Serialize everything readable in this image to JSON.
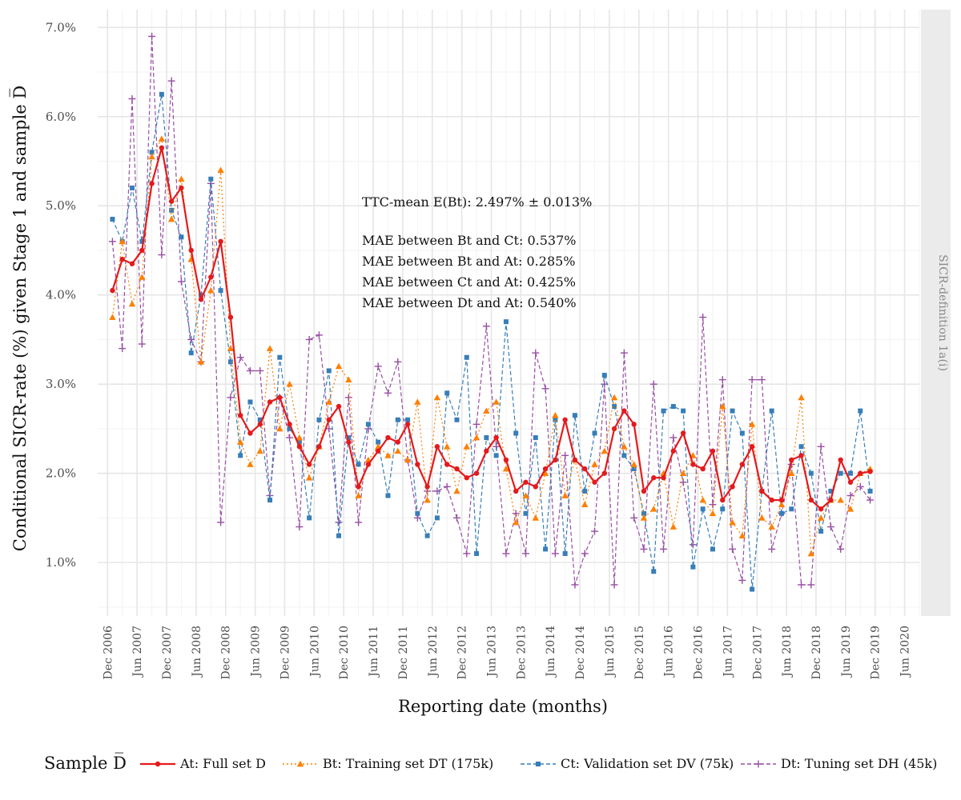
{
  "chart_data": {
    "type": "line",
    "ylabel": "Conditional SICR-rate (%) given Stage 1 and sample D̅",
    "xlabel": "Reporting date (months)",
    "facet_label": "SICR-definition 1a(i)",
    "ylim": [
      0.4,
      7.2
    ],
    "xlim": [
      "2006-10",
      "2020-09"
    ],
    "y_ticks": [
      1.0,
      2.0,
      3.0,
      4.0,
      5.0,
      6.0,
      7.0
    ],
    "y_tick_labels": [
      "1.0%",
      "2.0%",
      "3.0%",
      "4.0%",
      "5.0%",
      "6.0%",
      "7.0%"
    ],
    "x_ticks": [
      "2006-12",
      "2007-06",
      "2007-12",
      "2008-06",
      "2008-12",
      "2009-06",
      "2009-12",
      "2010-06",
      "2010-12",
      "2011-06",
      "2011-12",
      "2012-06",
      "2012-12",
      "2013-06",
      "2013-12",
      "2014-06",
      "2014-12",
      "2015-06",
      "2015-12",
      "2016-06",
      "2016-12",
      "2017-06",
      "2017-12",
      "2018-06",
      "2018-12",
      "2019-06",
      "2019-12",
      "2020-06"
    ],
    "x_tick_labels": [
      "Dec 2006",
      "Jun 2007",
      "Dec 2007",
      "Jun 2008",
      "Dec 2008",
      "Jun 2009",
      "Dec 2009",
      "Jun 2010",
      "Dec 2010",
      "Jun 2011",
      "Dec 2011",
      "Jun 2012",
      "Dec 2012",
      "Jun 2013",
      "Dec 2013",
      "Jun 2014",
      "Dec 2014",
      "Jun 2015",
      "Dec 2015",
      "Jun 2016",
      "Dec 2016",
      "Jun 2017",
      "Dec 2017",
      "Jun 2018",
      "Dec 2018",
      "Jun 2019",
      "Dec 2019",
      "Jun 2020"
    ],
    "grid": true,
    "legend_position": "bottom",
    "legend_title": "Sample D̅",
    "annotations": [
      "TTC-mean E(Bt): 2.497% ± 0.013%",
      "MAE between Bt and Ct: 0.537%",
      "MAE between Bt and At: 0.285%",
      "MAE between Ct and At: 0.425%",
      "MAE between Dt and At: 0.540%"
    ],
    "x": [
      "2007-01",
      "2007-03",
      "2007-05",
      "2007-07",
      "2007-09",
      "2007-11",
      "2008-01",
      "2008-03",
      "2008-05",
      "2008-07",
      "2008-09",
      "2008-11",
      "2009-01",
      "2009-03",
      "2009-05",
      "2009-07",
      "2009-09",
      "2009-11",
      "2010-01",
      "2010-03",
      "2010-05",
      "2010-07",
      "2010-09",
      "2010-11",
      "2011-01",
      "2011-03",
      "2011-05",
      "2011-07",
      "2011-09",
      "2011-11",
      "2012-01",
      "2012-03",
      "2012-05",
      "2012-07",
      "2012-09",
      "2012-11",
      "2013-01",
      "2013-03",
      "2013-05",
      "2013-07",
      "2013-09",
      "2013-11",
      "2014-01",
      "2014-03",
      "2014-05",
      "2014-07",
      "2014-09",
      "2014-11",
      "2015-01",
      "2015-03",
      "2015-05",
      "2015-07",
      "2015-09",
      "2015-11",
      "2016-01",
      "2016-03",
      "2016-05",
      "2016-07",
      "2016-09",
      "2016-11",
      "2017-01",
      "2017-03",
      "2017-05",
      "2017-07",
      "2017-09",
      "2017-11",
      "2018-01",
      "2018-03",
      "2018-05",
      "2018-07",
      "2018-09",
      "2018-11",
      "2019-01",
      "2019-03",
      "2019-05",
      "2019-07",
      "2019-09",
      "2019-11"
    ],
    "series": [
      {
        "name": "At: Full set D",
        "color": "#e41a1c",
        "marker": "circle",
        "dash": "solid",
        "values": [
          4.05,
          4.4,
          4.35,
          4.5,
          5.25,
          5.65,
          5.05,
          5.2,
          4.5,
          3.95,
          4.2,
          4.6,
          3.75,
          2.65,
          2.45,
          2.55,
          2.8,
          2.85,
          2.55,
          2.3,
          2.1,
          2.3,
          2.6,
          2.75,
          2.35,
          1.85,
          2.1,
          2.25,
          2.4,
          2.35,
          2.55,
          2.1,
          1.85,
          2.3,
          2.1,
          2.05,
          1.95,
          2.0,
          2.25,
          2.4,
          2.15,
          1.8,
          1.9,
          1.85,
          2.05,
          2.15,
          2.6,
          2.15,
          2.05,
          1.9,
          2.0,
          2.5,
          2.7,
          2.55,
          1.8,
          1.95,
          1.95,
          2.25,
          2.45,
          2.1,
          2.05,
          2.25,
          1.7,
          1.85,
          2.1,
          2.3,
          1.8,
          1.7,
          1.7,
          2.15,
          2.2,
          1.7,
          1.6,
          1.7,
          2.15,
          1.9,
          2.0,
          2.02
        ]
      },
      {
        "name": "Bt: Training set DT (175k)",
        "color": "#ff7f00",
        "marker": "triangle",
        "dash": "dotted",
        "values": [
          3.75,
          4.6,
          3.9,
          4.2,
          5.55,
          5.75,
          4.85,
          5.3,
          4.4,
          3.25,
          4.05,
          5.4,
          3.4,
          2.35,
          2.1,
          2.25,
          3.4,
          2.5,
          3.0,
          2.4,
          1.95,
          2.3,
          2.8,
          3.2,
          3.05,
          1.75,
          2.15,
          2.3,
          2.2,
          2.25,
          2.15,
          2.8,
          1.7,
          2.85,
          2.3,
          1.8,
          2.3,
          2.4,
          2.7,
          2.8,
          2.05,
          1.45,
          1.75,
          1.5,
          2.0,
          2.65,
          1.75,
          2.15,
          1.65,
          2.1,
          2.25,
          2.85,
          2.3,
          2.1,
          1.5,
          1.6,
          2.0,
          1.4,
          2.0,
          2.2,
          1.7,
          1.55,
          2.75,
          1.45,
          1.3,
          2.55,
          1.5,
          1.4,
          1.65,
          2.0,
          2.85,
          1.1,
          1.5,
          1.7,
          1.7,
          1.6,
          2.0,
          2.05
        ]
      },
      {
        "name": "Ct: Validation set DV (75k)",
        "color": "#377eb8",
        "marker": "square",
        "dash": "dashed",
        "values": [
          4.85,
          4.6,
          5.2,
          4.6,
          5.6,
          6.25,
          4.95,
          4.65,
          3.35,
          4.0,
          5.3,
          4.05,
          3.25,
          2.2,
          2.8,
          2.6,
          1.7,
          3.3,
          2.5,
          2.35,
          1.5,
          2.6,
          3.15,
          1.3,
          2.4,
          2.1,
          2.55,
          2.35,
          1.75,
          2.6,
          2.6,
          1.55,
          1.3,
          1.5,
          2.9,
          2.6,
          3.3,
          1.1,
          2.4,
          2.2,
          3.7,
          2.45,
          1.55,
          2.4,
          1.15,
          2.6,
          1.1,
          2.65,
          1.8,
          2.45,
          3.1,
          2.75,
          2.2,
          2.05,
          1.55,
          0.9,
          2.7,
          2.75,
          2.7,
          0.95,
          1.6,
          1.15,
          1.6,
          2.7,
          2.45,
          0.7,
          1.8,
          2.7,
          1.55,
          1.6,
          2.3,
          2.0,
          1.35,
          1.8,
          2.0,
          2.0,
          2.7,
          1.8
        ]
      },
      {
        "name": "Dt: Tuning set DH (45k)",
        "color": "#984ea3",
        "marker": "plus",
        "dash": "dashed",
        "values": [
          4.6,
          3.4,
          6.2,
          3.45,
          6.9,
          4.45,
          6.4,
          4.15,
          3.5,
          3.25,
          5.25,
          1.45,
          2.85,
          3.3,
          3.15,
          3.15,
          1.75,
          2.85,
          2.4,
          1.4,
          3.5,
          3.55,
          2.5,
          1.45,
          2.85,
          1.45,
          2.5,
          3.2,
          2.9,
          3.25,
          2.15,
          1.5,
          1.8,
          1.8,
          1.85,
          1.5,
          1.1,
          2.55,
          3.65,
          2.3,
          1.1,
          1.55,
          1.1,
          3.35,
          2.95,
          1.1,
          2.2,
          0.75,
          1.1,
          1.35,
          3.0,
          0.75,
          3.35,
          1.5,
          1.15,
          3.0,
          1.15,
          2.4,
          1.9,
          1.2,
          3.75,
          1.65,
          3.05,
          1.15,
          0.8,
          3.05,
          3.05,
          1.15,
          1.55,
          2.1,
          0.75,
          0.75,
          2.3,
          1.4,
          1.15,
          1.75,
          1.85,
          1.7
        ]
      }
    ]
  },
  "legend": {
    "title": "Sample D̅",
    "items": [
      {
        "label": "At: Full set D",
        "color": "#e41a1c",
        "marker": "circle",
        "dash": "solid"
      },
      {
        "label": "Bt: Training set DT (175k)",
        "color": "#ff7f00",
        "marker": "triangle",
        "dash": "dotted"
      },
      {
        "label": "Ct: Validation set DV (75k)",
        "color": "#377eb8",
        "marker": "square",
        "dash": "dashed"
      },
      {
        "label": "Dt: Tuning set DH (45k)",
        "color": "#984ea3",
        "marker": "plus",
        "dash": "dashed"
      }
    ]
  }
}
